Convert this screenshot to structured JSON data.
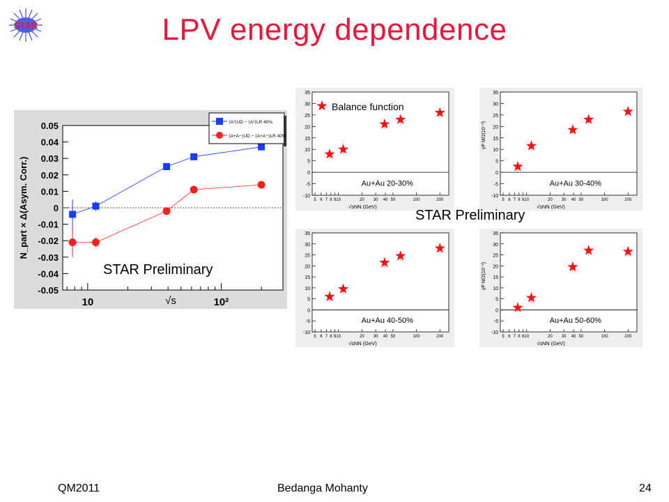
{
  "slide": {
    "title": "LPV energy dependence",
    "logo_text": "STAR",
    "footer_left": "QM2011",
    "footer_center": "Bedanga Mohanty",
    "footer_right": "24",
    "accent_color": "#e8173b"
  },
  "chart_data": [
    {
      "type": "scatter",
      "ylabel": "N_part × Δ(Asym. Corr.)",
      "xlabel": "√s",
      "x_scale": "log",
      "xlim": [
        6.5,
        290
      ],
      "ylim": [
        -0.05,
        0.05
      ],
      "y_ticks": [
        "0.05",
        "0.04",
        "0.03",
        "0.02",
        "0.01",
        "0",
        "-0.01",
        "-0.02",
        "-0.03",
        "-0.04",
        "-0.05"
      ],
      "x_tick_labels": [
        "10",
        "10²"
      ],
      "annotation": "STAR Preliminary",
      "legend": [
        "⟨A²⟩UD − ⟨A²⟩LR 40%",
        "⟨A+A−⟩UD − ⟨A+A−⟩LR 40%"
      ],
      "series": [
        {
          "name": "⟨A²⟩UD − ⟨A²⟩LR 40%",
          "color": "#1a3cff",
          "marker": "square",
          "x": [
            7.7,
            11.5,
            39,
            62.4,
            200
          ],
          "y": [
            -0.004,
            0.001,
            0.025,
            0.031,
            0.037
          ],
          "err": [
            0.009,
            0.003,
            0.002,
            0.001,
            0.001
          ]
        },
        {
          "name": "⟨A+A−⟩UD − ⟨A+A−⟩LR 40%",
          "color": "#ff1f1f",
          "marker": "circle",
          "x": [
            7.7,
            11.5,
            39,
            62.4,
            200
          ],
          "y": [
            -0.021,
            -0.021,
            -0.002,
            0.011,
            0.014
          ],
          "err": [
            0.009,
            0.003,
            0.002,
            0.001,
            0.001
          ]
        }
      ]
    },
    {
      "type": "scatter",
      "ylim": [
        -10,
        35
      ],
      "y_tick_labels": [
        "35",
        "30",
        "25",
        "20",
        "15",
        "10",
        "5",
        "0",
        "-5",
        "-10"
      ],
      "x_tick_labels": [
        "5",
        "6",
        "7",
        "8",
        "9",
        "10",
        "20",
        "30",
        "40",
        "50",
        "100",
        "200"
      ],
      "xlabel": "√sNN (GeV)",
      "legend": [
        "Balance function"
      ],
      "annotation": "Au+Au 20-30%",
      "series": [
        {
          "name": "Balance function",
          "color": "#ff1010",
          "x": [
            7.7,
            11.5,
            39,
            62.4,
            200
          ],
          "y": [
            7.9,
            10,
            21,
            23,
            26
          ]
        }
      ]
    },
    {
      "type": "scatter",
      "ylim": [
        -10,
        35
      ],
      "y_tick_labels": [
        "35",
        "30",
        "25",
        "20",
        "15",
        "10",
        "5",
        "0",
        "-5",
        "-10"
      ],
      "x_tick_labels": [
        "5",
        "6",
        "7",
        "8",
        "9",
        "10",
        "20",
        "30",
        "40",
        "50",
        "100",
        "200"
      ],
      "xlabel": "√sNN (GeV)",
      "ylabel": "γP M/2(10⁻³)",
      "annotation": "Au+Au 30-40%",
      "series": [
        {
          "x": [
            7.7,
            11.5,
            39,
            62.4,
            200
          ],
          "y": [
            2.5,
            11.5,
            18.5,
            23,
            26.5
          ]
        }
      ]
    },
    {
      "type": "scatter",
      "ylim": [
        -10,
        35
      ],
      "y_tick_labels": [
        "35",
        "30",
        "25",
        "20",
        "15",
        "10",
        "5",
        "0",
        "-5",
        "-10"
      ],
      "x_tick_labels": [
        "5",
        "6",
        "7",
        "8",
        "9",
        "10",
        "20",
        "30",
        "40",
        "50",
        "100",
        "200"
      ],
      "xlabel": "√sNN (GeV)",
      "annotation": "Au+Au 40-50%",
      "series": [
        {
          "x": [
            7.7,
            11.5,
            39,
            62.4,
            200
          ],
          "y": [
            6,
            9.5,
            21.5,
            24.5,
            28
          ]
        }
      ]
    },
    {
      "type": "scatter",
      "ylim": [
        -10,
        35
      ],
      "y_tick_labels": [
        "35",
        "30",
        "25",
        "20",
        "15",
        "10",
        "5",
        "0",
        "-5",
        "-10"
      ],
      "x_tick_labels": [
        "5",
        "6",
        "7",
        "8",
        "9",
        "10",
        "20",
        "30",
        "40",
        "50",
        "100",
        "200"
      ],
      "xlabel": "√sNN (GeV)",
      "ylabel": "γP M/2(10⁻³)",
      "annotation": "Au+Au 50-60%",
      "series": [
        {
          "x": [
            7.7,
            11.5,
            39,
            62.4,
            200
          ],
          "y": [
            1,
            5.5,
            19.5,
            27,
            26.5
          ]
        }
      ]
    }
  ],
  "overlay": {
    "prelim_right": "STAR Preliminary"
  }
}
